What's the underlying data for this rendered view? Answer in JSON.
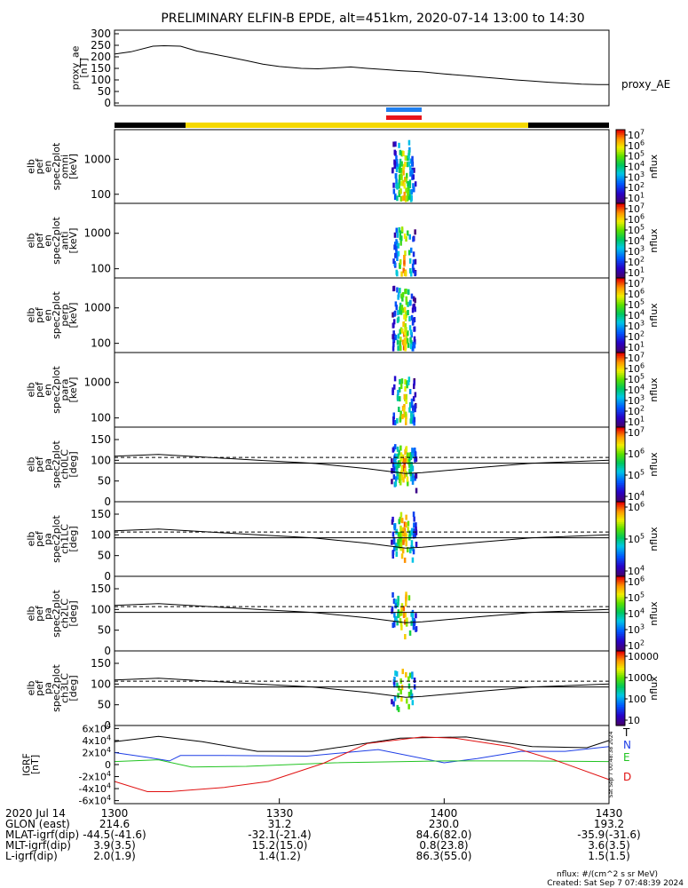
{
  "title": "PRELIMINARY ELFIN-B EPDE, alt=451km, 2020-07-14 13:00 to 14:30",
  "colors": {
    "foreground": "#000000",
    "background": "#ffffff",
    "status_yellow": "#f5d800",
    "status_black": "#000000",
    "bar_blue": "#1f7ff0",
    "bar_red": "#e8151b"
  },
  "chart_data": [
    {
      "type": "line",
      "id": "proxy_ae",
      "ylabel": [
        "proxy_ae",
        "[nT]"
      ],
      "legend": "proxy_AE",
      "ylim": [
        0,
        300
      ],
      "yticks": [
        "300",
        "250",
        "200",
        "150",
        "100",
        "50",
        "0"
      ],
      "x_minutes": [
        0,
        3,
        7,
        9,
        12,
        15,
        18,
        21,
        24,
        27,
        30,
        34,
        37,
        40,
        43,
        46,
        49,
        52,
        56,
        60,
        64,
        67,
        70,
        73,
        76,
        79,
        82,
        85,
        88,
        90
      ],
      "values": [
        212,
        222,
        246,
        248,
        246,
        225,
        212,
        198,
        184,
        168,
        158,
        150,
        148,
        152,
        156,
        150,
        145,
        140,
        135,
        126,
        118,
        112,
        106,
        100,
        95,
        90,
        86,
        82,
        80,
        80
      ]
    },
    {
      "type": "heatmap",
      "id": "pef_omni",
      "ylabel": [
        "elb",
        "pef",
        "en",
        "spec2plot",
        "omni",
        "[keV]"
      ],
      "yaxis_scale": "log",
      "ylim_keV": [
        55,
        7000
      ],
      "yticks": [
        "1000",
        "100"
      ],
      "colorbar": {
        "label": "nflux",
        "scale": "log",
        "ticks": [
          "10^7",
          "10^6",
          "10^5",
          "10^4",
          "10^3",
          "10^2",
          "10^1"
        ]
      }
    },
    {
      "type": "heatmap",
      "id": "pef_anti",
      "ylabel": [
        "elb",
        "pef",
        "en",
        "spec2plot",
        "anti",
        "[keV]"
      ],
      "yaxis_scale": "log",
      "ylim_keV": [
        55,
        7000
      ],
      "yticks": [
        "1000",
        "100"
      ],
      "colorbar": {
        "label": "nflux",
        "scale": "log",
        "ticks": [
          "10^7",
          "10^6",
          "10^5",
          "10^4",
          "10^3",
          "10^2",
          "10^1"
        ]
      }
    },
    {
      "type": "heatmap",
      "id": "pef_perp",
      "ylabel": [
        "elb",
        "pef",
        "en",
        "spec2plot",
        "perp",
        "[keV]"
      ],
      "yaxis_scale": "log",
      "ylim_keV": [
        55,
        7000
      ],
      "yticks": [
        "1000",
        "100"
      ],
      "colorbar": {
        "label": "nflux",
        "scale": "log",
        "ticks": [
          "10^7",
          "10^6",
          "10^5",
          "10^4",
          "10^3",
          "10^2",
          "10^1"
        ]
      }
    },
    {
      "type": "heatmap",
      "id": "pef_para",
      "ylabel": [
        "elb",
        "pef",
        "en",
        "spec2plot",
        "para",
        "[keV]"
      ],
      "yaxis_scale": "log",
      "ylim_keV": [
        55,
        7000
      ],
      "yticks": [
        "1000",
        "100"
      ],
      "colorbar": {
        "label": "nflux",
        "scale": "log",
        "ticks": [
          "10^7",
          "10^6",
          "10^5",
          "10^4",
          "10^3",
          "10^2",
          "10^1"
        ]
      }
    },
    {
      "type": "heatmap",
      "id": "pef_ch0LC",
      "ylabel": [
        "elb",
        "pef",
        "pa",
        "spec2plot",
        "ch0LC",
        "[deg]"
      ],
      "ylim": [
        0,
        180
      ],
      "yticks": [
        "150",
        "100",
        "50",
        "0"
      ],
      "colorbar": {
        "label": "nflux",
        "scale": "log",
        "ticks": [
          "10^7",
          "10^6",
          "10^5",
          "10^4"
        ]
      }
    },
    {
      "type": "heatmap",
      "id": "pef_ch1LC",
      "ylabel": [
        "elb",
        "pef",
        "pa",
        "spec2plot",
        "ch1LC",
        "[deg]"
      ],
      "ylim": [
        0,
        180
      ],
      "yticks": [
        "150",
        "100",
        "50",
        "0"
      ],
      "colorbar": {
        "label": "nflux",
        "scale": "log",
        "ticks": [
          "10^6",
          "10^5",
          "10^4"
        ]
      }
    },
    {
      "type": "heatmap",
      "id": "pef_ch2LC",
      "ylabel": [
        "elb",
        "pef",
        "pa",
        "spec2plot",
        "ch2LC",
        "[deg]"
      ],
      "ylim": [
        0,
        180
      ],
      "yticks": [
        "150",
        "100",
        "50",
        "0"
      ],
      "colorbar": {
        "label": "nflux",
        "scale": "log",
        "ticks": [
          "10^6",
          "10^5",
          "10^4",
          "10^3",
          "10^2"
        ]
      }
    },
    {
      "type": "heatmap",
      "id": "pef_ch3LC",
      "ylabel": [
        "elb",
        "pef",
        "pa",
        "spec2plot",
        "ch3LC",
        "[deg]"
      ],
      "ylim": [
        0,
        180
      ],
      "yticks": [
        "150",
        "100",
        "50",
        "0"
      ],
      "colorbar": {
        "label": "nflux",
        "scale": "log",
        "ticks": [
          "10000",
          "1000",
          "100",
          "10"
        ]
      }
    },
    {
      "type": "line",
      "id": "igrf",
      "ylabel": [
        "IGRF",
        "[nT]"
      ],
      "ylim": [
        -65000,
        65000
      ],
      "yticks": [
        "6x10^4",
        "4x10^4",
        "2x10^4",
        "0",
        "-2x10^4",
        "-4x10^4",
        "-6x10^4"
      ],
      "legend": [
        "T",
        "N",
        "E",
        "D"
      ],
      "series_colors": [
        "#000000",
        "#1f3fe6",
        "#22c422",
        "#e01010"
      ],
      "side_text": "Sat Sep  7 00:48:38 2024"
    }
  ],
  "footer": {
    "rows": [
      {
        "label": "2020 Jul 14",
        "values": [
          "1300",
          "1330",
          "1400",
          "1430"
        ]
      },
      {
        "label": "GLON (east)",
        "values": [
          "214.6",
          "31.2",
          "230.0",
          "193.2"
        ]
      },
      {
        "label": "MLAT-igrf(dip)",
        "values": [
          "-44.5(-41.6)",
          "-32.1(-21.4)",
          "84.6(82.0)",
          "-35.9(-31.6)"
        ]
      },
      {
        "label": "MLT-igrf(dip)",
        "values": [
          "3.9(3.5)",
          "15.2(15.0)",
          "0.8(23.8)",
          "3.6(3.5)"
        ]
      },
      {
        "label": "L-igrf(dip)",
        "values": [
          "2.0(1.9)",
          "1.4(1.2)",
          "86.3(55.0)",
          "1.5(1.5)"
        ]
      }
    ],
    "nflux_units": "nflux: #/(cm^2 s sr MeV)",
    "created": "Created: Sat Sep  7 07:48:39 2024"
  }
}
